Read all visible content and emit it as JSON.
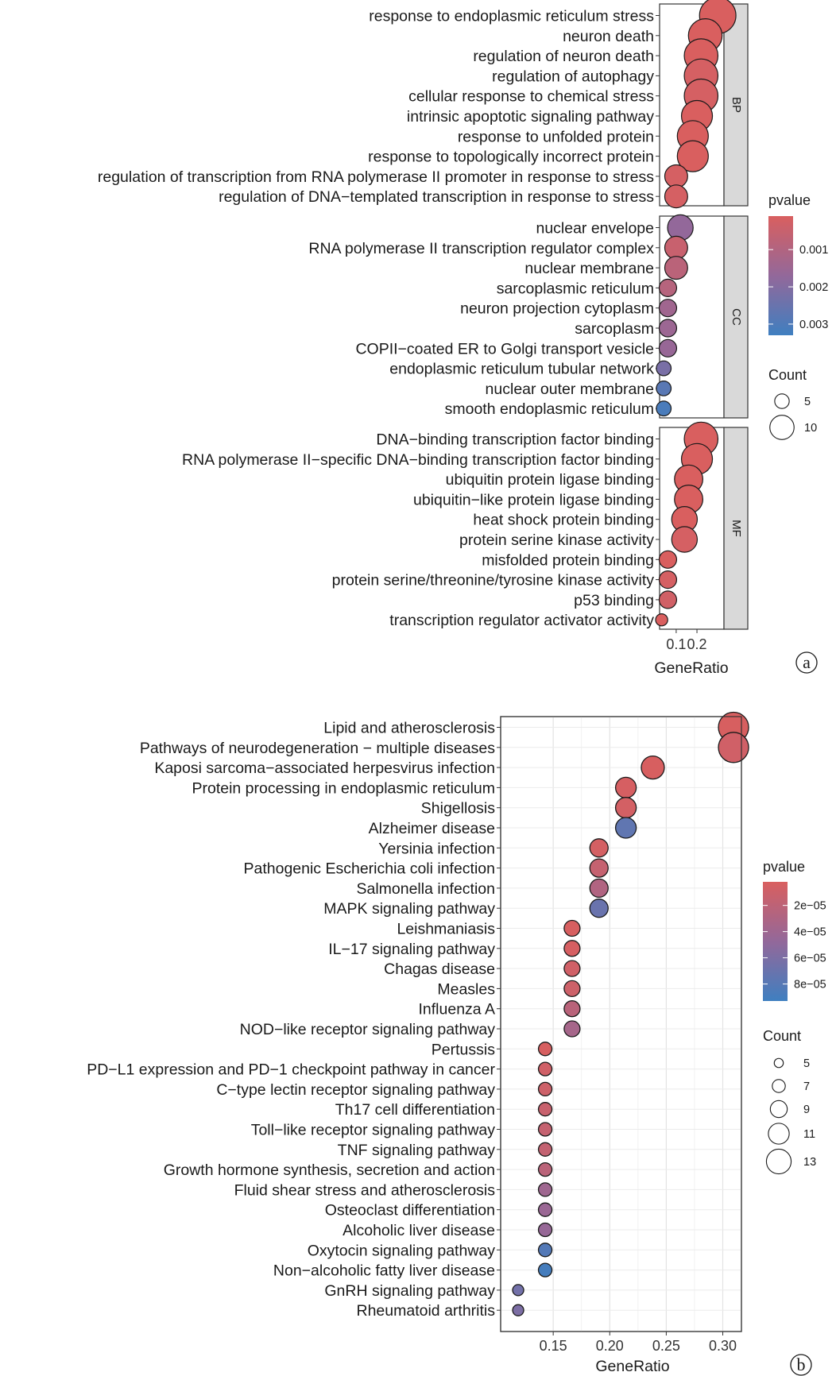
{
  "chart_data": [
    {
      "type": "scatter",
      "panel_label": "a",
      "xlabel": "GeneRatio",
      "x_ticks": [
        "0.1",
        "0.2"
      ],
      "x_tick_values": [
        0.1,
        0.2
      ],
      "xlim": [
        0.02,
        0.33
      ],
      "color_legend": {
        "title": "pvalue",
        "ticks": [
          "0.001",
          "0.002",
          "0.003"
        ],
        "tick_values": [
          0.001,
          0.002,
          0.003
        ],
        "range": [
          0.0001,
          0.0033
        ],
        "low_color": "#d95f5f",
        "high_color": "#3f7fc0"
      },
      "size_legend": {
        "title": "Count",
        "labels": [
          "5",
          "10"
        ],
        "values": [
          5,
          10
        ]
      },
      "facets": [
        {
          "name": "BP",
          "terms": [
            {
              "term": "response to endoplasmic reticulum stress",
              "x": 0.3,
              "count": 11,
              "pvalue": 0.0001
            },
            {
              "term": "neuron death",
              "x": 0.24,
              "count": 10,
              "pvalue": 0.0001
            },
            {
              "term": "regulation of neuron death",
              "x": 0.22,
              "count": 10,
              "pvalue": 0.0001
            },
            {
              "term": "regulation of autophagy",
              "x": 0.22,
              "count": 10,
              "pvalue": 0.0002
            },
            {
              "term": "cellular response to chemical stress",
              "x": 0.22,
              "count": 10,
              "pvalue": 0.0002
            },
            {
              "term": "intrinsic apoptotic signaling pathway",
              "x": 0.2,
              "count": 9,
              "pvalue": 0.0001
            },
            {
              "term": "response to unfolded protein",
              "x": 0.18,
              "count": 9,
              "pvalue": 0.0001
            },
            {
              "term": "response to topologically incorrect protein",
              "x": 0.18,
              "count": 9,
              "pvalue": 0.0001
            },
            {
              "term": "regulation of transcription from RNA polymerase II promoter in response to stress",
              "x": 0.1,
              "count": 6,
              "pvalue": 0.0002
            },
            {
              "term": "regulation of DNA−templated transcription in response to stress",
              "x": 0.1,
              "count": 6,
              "pvalue": 0.0002
            }
          ]
        },
        {
          "name": "CC",
          "terms": [
            {
              "term": "nuclear envelope",
              "x": 0.12,
              "count": 7,
              "pvalue": 0.0017
            },
            {
              "term": "RNA polymerase II transcription regulator complex",
              "x": 0.1,
              "count": 6,
              "pvalue": 0.0005
            },
            {
              "term": "nuclear membrane",
              "x": 0.1,
              "count": 6,
              "pvalue": 0.0008
            },
            {
              "term": "sarcoplasmic reticulum",
              "x": 0.06,
              "count": 4,
              "pvalue": 0.0009
            },
            {
              "term": "neuron projection cytoplasm",
              "x": 0.06,
              "count": 4,
              "pvalue": 0.0014
            },
            {
              "term": "sarcoplasm",
              "x": 0.06,
              "count": 4,
              "pvalue": 0.0015
            },
            {
              "term": "COPII−coated ER to Golgi transport vesicle",
              "x": 0.06,
              "count": 4,
              "pvalue": 0.0016
            },
            {
              "term": "endoplasmic reticulum tubular network",
              "x": 0.04,
              "count": 3,
              "pvalue": 0.0022
            },
            {
              "term": "nuclear outer membrane",
              "x": 0.04,
              "count": 3,
              "pvalue": 0.0028
            },
            {
              "term": "smooth endoplasmic reticulum",
              "x": 0.04,
              "count": 3,
              "pvalue": 0.0031
            }
          ]
        },
        {
          "name": "MF",
          "terms": [
            {
              "term": "DNA−binding transcription factor binding",
              "x": 0.22,
              "count": 10,
              "pvalue": 0.0001
            },
            {
              "term": "RNA polymerase II−specific DNA−binding transcription factor binding",
              "x": 0.2,
              "count": 9,
              "pvalue": 0.0001
            },
            {
              "term": "ubiquitin protein ligase binding",
              "x": 0.16,
              "count": 8,
              "pvalue": 0.0001
            },
            {
              "term": "ubiquitin−like protein ligase binding",
              "x": 0.16,
              "count": 8,
              "pvalue": 0.0001
            },
            {
              "term": "heat shock protein binding",
              "x": 0.14,
              "count": 7,
              "pvalue": 0.0001
            },
            {
              "term": "protein serine kinase activity",
              "x": 0.14,
              "count": 7,
              "pvalue": 0.0002
            },
            {
              "term": "misfolded protein binding",
              "x": 0.06,
              "count": 4,
              "pvalue": 0.0001
            },
            {
              "term": "protein serine/threonine/tyrosine kinase activity",
              "x": 0.06,
              "count": 4,
              "pvalue": 0.0002
            },
            {
              "term": "p53 binding",
              "x": 0.06,
              "count": 4,
              "pvalue": 0.0003
            },
            {
              "term": "transcription regulator activator activity",
              "x": 0.03,
              "count": 2,
              "pvalue": 0.0001
            }
          ]
        }
      ]
    },
    {
      "type": "scatter",
      "panel_label": "b",
      "xlabel": "GeneRatio",
      "x_ticks": [
        "0.15",
        "0.20",
        "0.25",
        "0.30"
      ],
      "x_tick_values": [
        0.15,
        0.2,
        0.25,
        0.3
      ],
      "xlim": [
        0.1035,
        0.3165
      ],
      "color_legend": {
        "title": "pvalue",
        "ticks": [
          "2e−05",
          "4e−05",
          "6e−05",
          "8e−05"
        ],
        "tick_values": [
          2e-05,
          4e-05,
          6e-05,
          8e-05
        ],
        "range": [
          2e-06,
          9.3e-05
        ],
        "low_color": "#d95f5f",
        "high_color": "#3f7fc0"
      },
      "size_legend": {
        "title": "Count",
        "labels": [
          "5",
          "7",
          "9",
          "11",
          "13"
        ],
        "values": [
          5,
          7,
          9,
          11,
          13
        ]
      },
      "terms": [
        {
          "term": "Lipid and atherosclerosis",
          "x": 0.3095,
          "count": 13,
          "pvalue": 3e-06
        },
        {
          "term": "Pathways of neurodegeneration − multiple diseases",
          "x": 0.3095,
          "count": 13,
          "pvalue": 8e-06
        },
        {
          "term": "Kaposi sarcoma−associated herpesvirus infection",
          "x": 0.2381,
          "count": 10,
          "pvalue": 3e-06
        },
        {
          "term": "Protein processing in endoplasmic reticulum",
          "x": 0.2143,
          "count": 9,
          "pvalue": 4e-06
        },
        {
          "term": "Shigellosis",
          "x": 0.2143,
          "count": 9,
          "pvalue": 6e-06
        },
        {
          "term": "Alzheimer disease",
          "x": 0.2143,
          "count": 9,
          "pvalue": 7.5e-05
        },
        {
          "term": "Yersinia infection",
          "x": 0.1905,
          "count": 8,
          "pvalue": 5e-06
        },
        {
          "term": "Pathogenic Escherichia coli infection",
          "x": 0.1905,
          "count": 8,
          "pvalue": 1.5e-05
        },
        {
          "term": "Salmonella infection",
          "x": 0.1905,
          "count": 8,
          "pvalue": 2.8e-05
        },
        {
          "term": "MAPK signaling pathway",
          "x": 0.1905,
          "count": 8,
          "pvalue": 7e-05
        },
        {
          "term": "Leishmaniasis",
          "x": 0.1667,
          "count": 7,
          "pvalue": 3e-06
        },
        {
          "term": "IL−17 signaling pathway",
          "x": 0.1667,
          "count": 7,
          "pvalue": 4e-06
        },
        {
          "term": "Chagas disease",
          "x": 0.1667,
          "count": 7,
          "pvalue": 8e-06
        },
        {
          "term": "Measles",
          "x": 0.1667,
          "count": 7,
          "pvalue": 1e-05
        },
        {
          "term": "Influenza A",
          "x": 0.1667,
          "count": 7,
          "pvalue": 2.3e-05
        },
        {
          "term": "NOD−like receptor signaling pathway",
          "x": 0.1667,
          "count": 7,
          "pvalue": 3.5e-05
        },
        {
          "term": "Pertussis",
          "x": 0.1429,
          "count": 6,
          "pvalue": 3e-06
        },
        {
          "term": "PD−L1 expression and PD−1 checkpoint pathway in cancer",
          "x": 0.1429,
          "count": 6,
          "pvalue": 8e-06
        },
        {
          "term": "C−type lectin receptor signaling pathway",
          "x": 0.1429,
          "count": 6,
          "pvalue": 1e-05
        },
        {
          "term": "Th17 cell differentiation",
          "x": 0.1429,
          "count": 6,
          "pvalue": 1.3e-05
        },
        {
          "term": "Toll−like receptor signaling pathway",
          "x": 0.1429,
          "count": 6,
          "pvalue": 1.5e-05
        },
        {
          "term": "TNF signaling pathway",
          "x": 0.1429,
          "count": 6,
          "pvalue": 1.6e-05
        },
        {
          "term": "Growth hormone synthesis, secretion and action",
          "x": 0.1429,
          "count": 6,
          "pvalue": 2.2e-05
        },
        {
          "term": "Fluid shear stress and atherosclerosis",
          "x": 0.1429,
          "count": 6,
          "pvalue": 4e-05
        },
        {
          "term": "Osteoclast differentiation",
          "x": 0.1429,
          "count": 6,
          "pvalue": 4.3e-05
        },
        {
          "term": "Alcoholic liver disease",
          "x": 0.1429,
          "count": 6,
          "pvalue": 4.5e-05
        },
        {
          "term": "Oxytocin signaling pathway",
          "x": 0.1429,
          "count": 6,
          "pvalue": 8.2e-05
        },
        {
          "term": "Non−alcoholic fatty liver disease",
          "x": 0.1429,
          "count": 6,
          "pvalue": 9e-05
        },
        {
          "term": "GnRH signaling pathway",
          "x": 0.119,
          "count": 5,
          "pvalue": 6.5e-05
        },
        {
          "term": "Rheumatoid arthritis",
          "x": 0.119,
          "count": 5,
          "pvalue": 6e-05
        }
      ]
    }
  ]
}
